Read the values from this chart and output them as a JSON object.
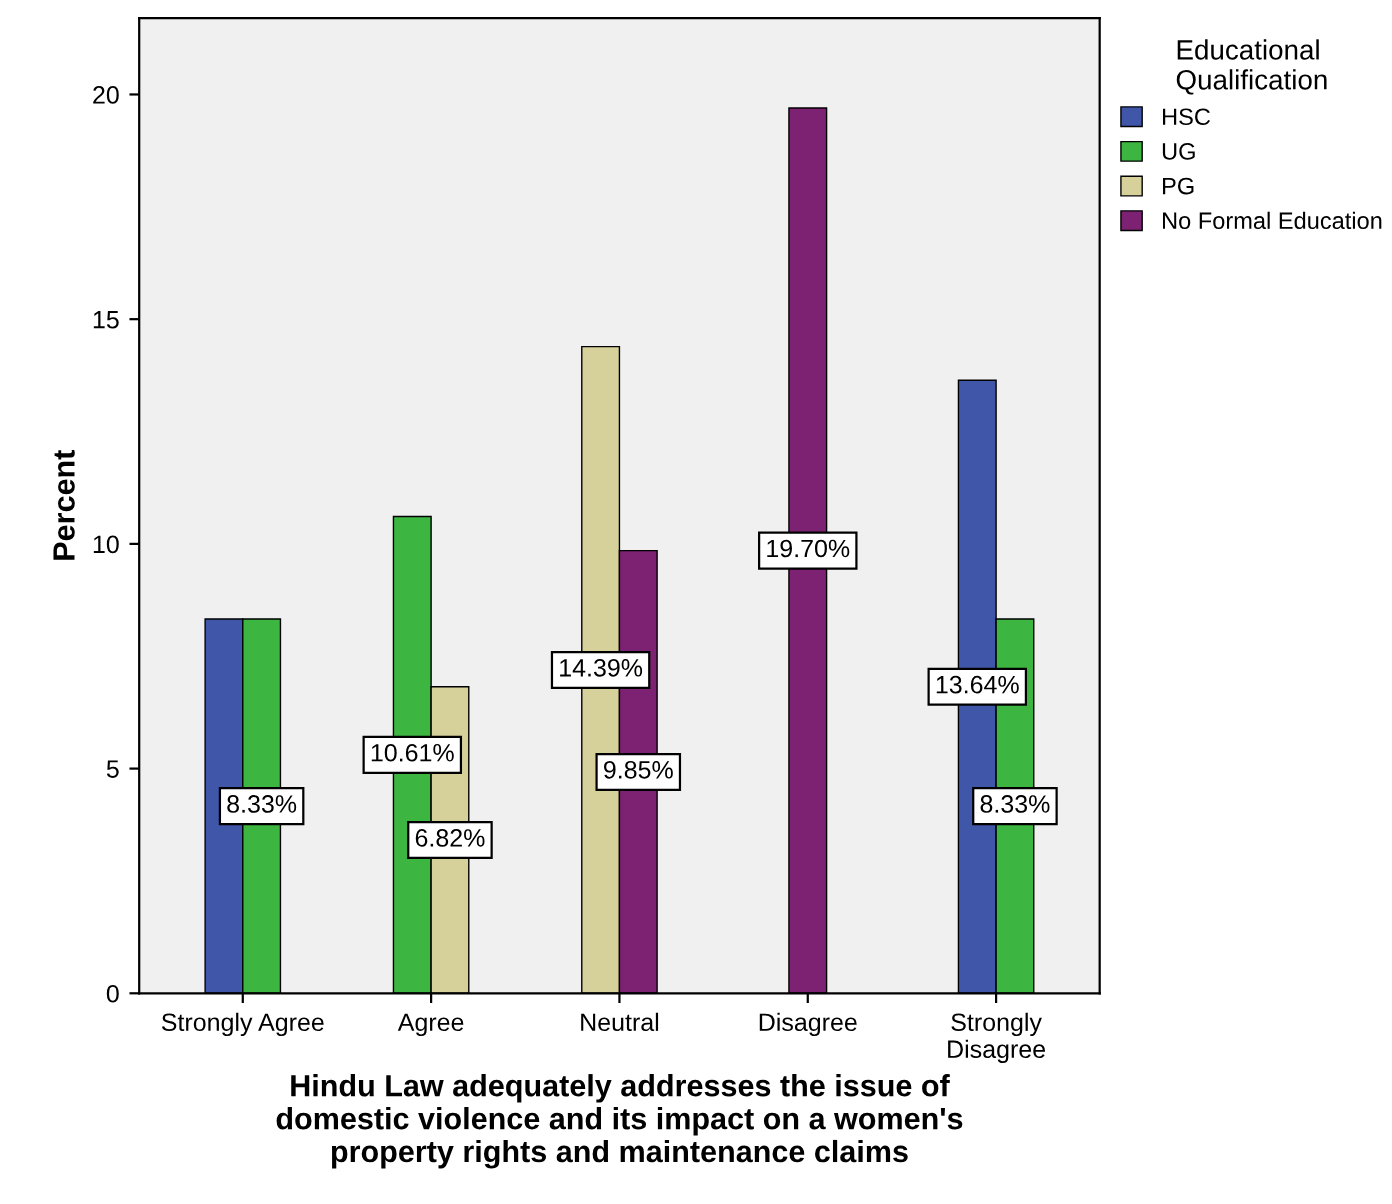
{
  "chart_data": {
    "type": "bar",
    "xlabel": "Hindu Law adequately addresses the issue of\ndomestic violence and its impact on a women's\nproperty rights and maintenance claims",
    "ylabel": "Percent",
    "legend_title": "Educational\nQualification",
    "categories": [
      "Strongly Agree",
      "Agree",
      "Neutral",
      "Disagree",
      "Strongly\nDisagree"
    ],
    "series": [
      {
        "name": "HSC",
        "color": "#3f56a9",
        "values": [
          8.33,
          null,
          null,
          null,
          13.64
        ],
        "value_labels": [
          null,
          null,
          null,
          null,
          "13.64%"
        ]
      },
      {
        "name": "UG",
        "color": "#3cb641",
        "values": [
          8.33,
          10.61,
          null,
          null,
          8.33
        ],
        "value_labels": [
          "8.33%",
          "10.61%",
          null,
          null,
          "8.33%"
        ]
      },
      {
        "name": "PG",
        "color": "#d6d19a",
        "values": [
          null,
          6.82,
          14.39,
          null,
          null
        ],
        "value_labels": [
          null,
          "6.82%",
          "14.39%",
          null,
          null
        ]
      },
      {
        "name": "No Formal Education",
        "color": "#7d2272",
        "values": [
          null,
          null,
          9.85,
          19.7,
          null
        ],
        "value_labels": [
          null,
          null,
          "9.85%",
          "19.70%",
          null
        ]
      }
    ],
    "ylim": [
      0,
      21.7
    ],
    "yticks": [
      0,
      5,
      10,
      15,
      20
    ],
    "grid": false,
    "legend": "top right"
  }
}
